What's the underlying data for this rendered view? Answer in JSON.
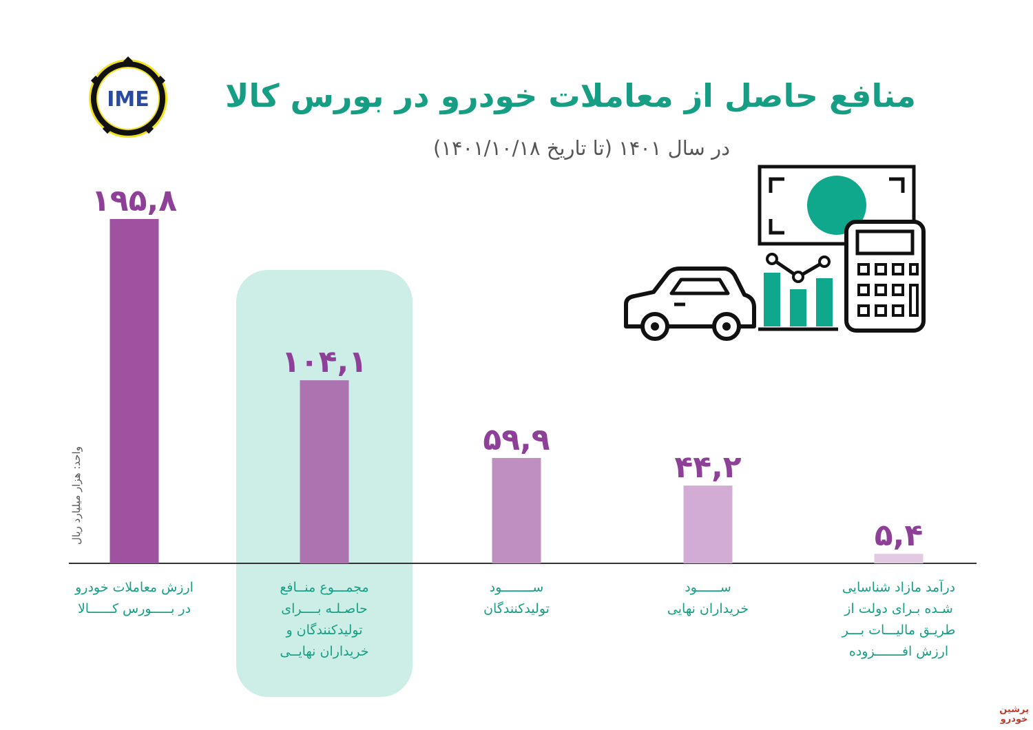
{
  "header": {
    "title": "منافع حاصل از معاملات خودرو در بورس کالا",
    "subtitle": "در سال ۱۴۰۱ (تا تاریخ ۱۴۰۱/۱۰/۱۸)",
    "logo_text": "IME"
  },
  "unit_label": "واحد: هزار میلیارد ریال",
  "watermark": {
    "line1": "پرشین",
    "line2": "خودرو"
  },
  "colors": {
    "title": "#169e84",
    "value_labels": "#8e3f98",
    "highlight_panel": "#cdeee7",
    "illustration_accent": "#0fa88c"
  },
  "chart_data": {
    "type": "bar",
    "categories": [
      "ارزش معاملات خودرو در بورس کالا",
      "مجموع منافع حاصله برای تولیدکنندگان و خریداران نهایی",
      "سود تولیدکنندگان",
      "سود خریداران نهایی",
      "درآمد مازاد شناسایی شده برای دولت از طریق مالیات بر ارزش افزوده"
    ],
    "category_lines": [
      [
        "ارزش معاملات خودرو",
        "در بـــــورس کــــــالا"
      ],
      [
        "مجمـــوع منــافع",
        "حاصـلـه بــــرای",
        "تولیدکنندگان و",
        "خریداران نهایــی"
      ],
      [
        "ســــــــود",
        "تولیدکنندگان"
      ],
      [
        "ســــــود",
        "خریداران  نهایی"
      ],
      [
        "درآمد مازاد شناسایی",
        "شـده بـرای دولت از",
        "طریـق مالیـــات بـــر",
        "ارزش افـــــــزوده"
      ]
    ],
    "values": [
      195.8,
      104.1,
      59.9,
      44.2,
      5.4
    ],
    "value_labels": [
      "۱۹۵,۸",
      "۱۰۴,۱",
      "۵۹,۹",
      "۴۴,۲",
      "۵,۴"
    ],
    "bar_colors": [
      "#a0519f",
      "#ad72b0",
      "#bf8fc2",
      "#d2acd4",
      "#e2cae3"
    ],
    "highlighted_category_index": 1,
    "ylim": [
      0,
      195.8
    ],
    "grid": false,
    "legend": "none"
  }
}
